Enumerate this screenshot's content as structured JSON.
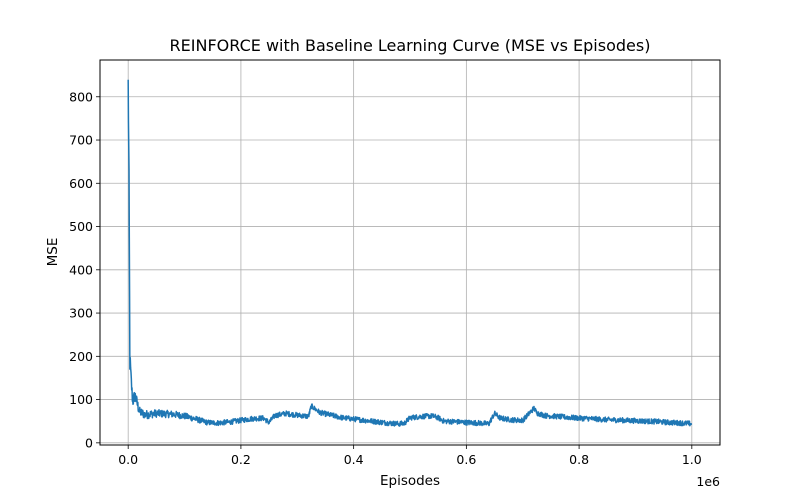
{
  "chart_data": {
    "type": "line",
    "title": "REINFORCE with Baseline Learning Curve (MSE vs Episodes)",
    "xlabel": "Episodes",
    "ylabel": "MSE",
    "x_offset_label": "1e6",
    "xlim": [
      -0.05,
      1.05
    ],
    "ylim": [
      -5,
      885
    ],
    "x_ticks": [
      0.0,
      0.2,
      0.4,
      0.6,
      0.8,
      1.0
    ],
    "x_tick_labels": [
      "0.0",
      "0.2",
      "0.4",
      "0.6",
      "0.8",
      "1.0"
    ],
    "y_ticks": [
      0,
      100,
      200,
      300,
      400,
      500,
      600,
      700,
      800
    ],
    "y_tick_labels": [
      "0",
      "100",
      "200",
      "300",
      "400",
      "500",
      "600",
      "700",
      "800"
    ],
    "grid": true,
    "series": [
      {
        "color": "#1f77b4",
        "x": [
          0.0,
          0.0015,
          0.003,
          0.005,
          0.008,
          0.012,
          0.02,
          0.03,
          0.05,
          0.08,
          0.1,
          0.12,
          0.14,
          0.16,
          0.18,
          0.2,
          0.22,
          0.24,
          0.25,
          0.26,
          0.28,
          0.3,
          0.32,
          0.325,
          0.34,
          0.36,
          0.38,
          0.4,
          0.42,
          0.44,
          0.46,
          0.48,
          0.49,
          0.5,
          0.52,
          0.54,
          0.55,
          0.56,
          0.58,
          0.6,
          0.62,
          0.64,
          0.65,
          0.66,
          0.68,
          0.7,
          0.72,
          0.725,
          0.74,
          0.76,
          0.78,
          0.8,
          0.82,
          0.84,
          0.86,
          0.88,
          0.9,
          0.92,
          0.94,
          0.96,
          0.98,
          1.0
        ],
        "y": [
          830,
          600,
          190,
          150,
          95,
          110,
          72,
          65,
          68,
          66,
          62,
          55,
          47,
          46,
          48,
          52,
          56,
          57,
          47,
          63,
          68,
          64,
          61,
          85,
          70,
          64,
          58,
          55,
          52,
          49,
          46,
          44,
          45,
          58,
          61,
          62,
          58,
          50,
          49,
          47,
          46,
          44,
          68,
          57,
          53,
          52,
          80,
          69,
          63,
          61,
          59,
          57,
          56,
          54,
          53,
          52,
          51,
          50,
          49,
          47,
          46,
          44
        ],
        "noise": [
          60,
          60,
          60,
          40,
          30,
          30,
          22,
          20,
          18,
          16,
          15,
          14,
          12,
          12,
          12,
          12,
          12,
          12,
          12,
          12,
          12,
          12,
          12,
          12,
          12,
          12,
          12,
          12,
          12,
          12,
          12,
          12,
          12,
          12,
          12,
          12,
          12,
          12,
          12,
          12,
          12,
          12,
          12,
          12,
          12,
          12,
          12,
          12,
          12,
          12,
          12,
          12,
          12,
          12,
          12,
          12,
          12,
          12,
          12,
          12,
          12,
          12
        ]
      }
    ]
  }
}
